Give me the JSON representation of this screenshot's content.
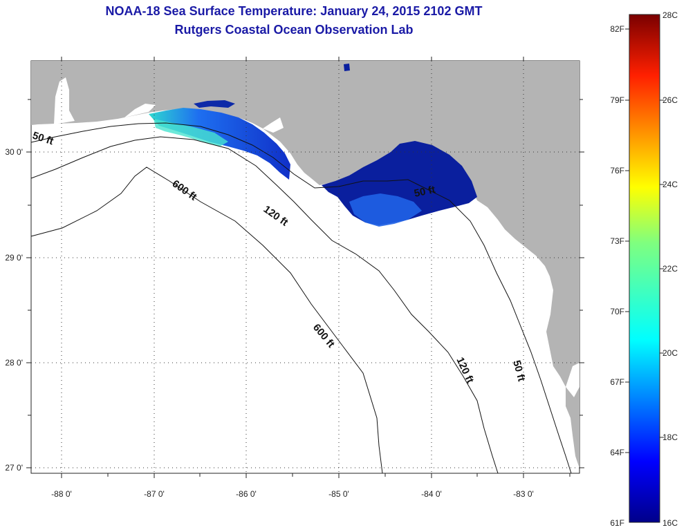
{
  "header": {
    "title": "NOAA-18 Sea Surface Temperature:  January 24, 2015 2102 GMT",
    "subtitle": "Rutgers Coastal Ocean Observation Lab"
  },
  "axes": {
    "lat_labels": [
      "30 0'",
      "29 0'",
      "28 0'",
      "27 0'"
    ],
    "lon_labels": [
      "-88 0'",
      "-87 0'",
      "-86 0'",
      "-85 0'",
      "-84 0'",
      "-83 0'"
    ]
  },
  "contour_labels": {
    "west_50": "50 ft",
    "west_600": "600 ft",
    "mid_120": "120 ft",
    "bigbend_50": "50 ft",
    "south_600": "600 ft",
    "south_120": "120 ft",
    "south_50": "50 ft"
  },
  "colorbar": {
    "fahrenheit": [
      "82F",
      "79F",
      "76F",
      "73F",
      "70F",
      "67F",
      "64F",
      "61F"
    ],
    "celsius": [
      "28C",
      "26C",
      "24C",
      "22C",
      "20C",
      "18C",
      "16C"
    ]
  },
  "colors": {
    "land": "#b4b4b4",
    "title": "#1a1aa6",
    "sst_cold": "#0a1f9e",
    "sst_mid": "#1e5fe0"
  }
}
